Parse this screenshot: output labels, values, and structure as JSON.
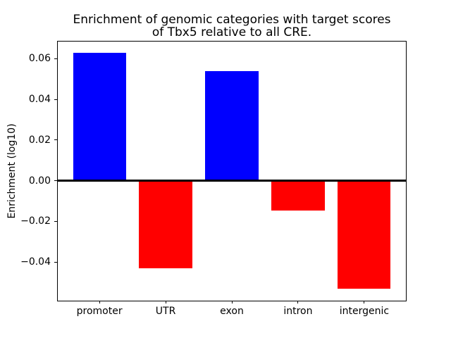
{
  "title": {
    "line1": "Enrichment of genomic categories with target scores",
    "line2": "of Tbx5 relative to all CRE."
  },
  "chart_data": {
    "type": "bar",
    "title": "Enrichment of genomic categories with target scores\nof Tbx5 relative to all CRE.",
    "xlabel": "",
    "ylabel": "Enrichment (log10)",
    "categories": [
      "promoter",
      "UTR",
      "exon",
      "intron",
      "intergenic"
    ],
    "values": [
      0.063,
      -0.043,
      0.054,
      -0.0145,
      -0.053
    ],
    "bar_colors": [
      "#0000ff",
      "#ff0000",
      "#0000ff",
      "#ff0000",
      "#ff0000"
    ],
    "positive_color": "#0000ff",
    "negative_color": "#ff0000",
    "ylim": [
      -0.0593,
      0.0688
    ],
    "yticks": [
      0.06,
      0.04,
      0.02,
      0.0,
      -0.02,
      -0.04
    ],
    "ytick_labels": [
      "0.06",
      "0.04",
      "0.02",
      "0.00",
      "−0.02",
      "−0.04"
    ],
    "bar_width_frac": 0.8,
    "x_margin_frac": 0.64,
    "zero_line": true,
    "grid": false,
    "legend_position": "none",
    "axis_color": "#000000",
    "background_color": "#ffffff"
  }
}
